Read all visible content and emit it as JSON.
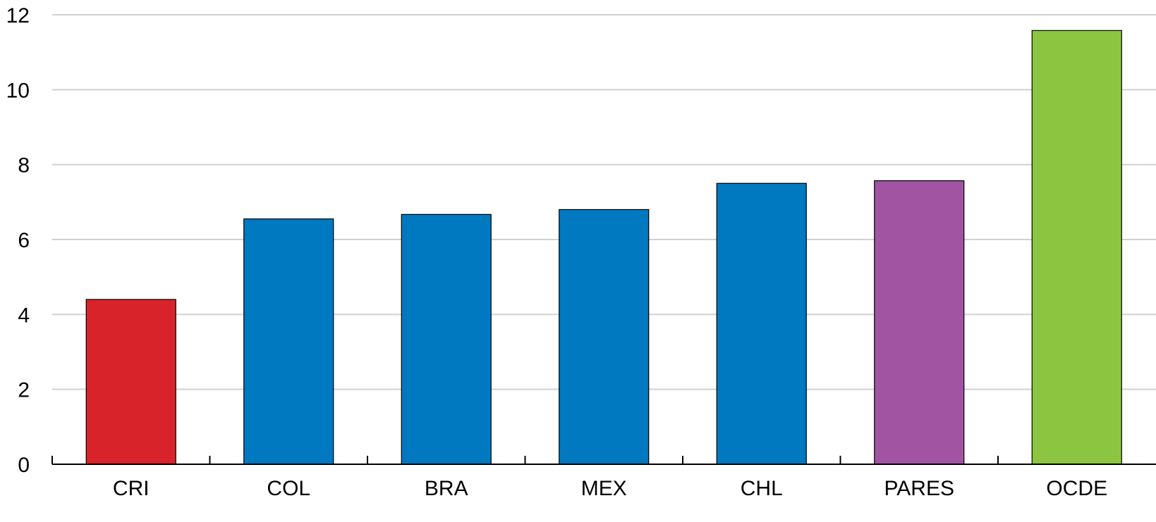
{
  "chart_data": {
    "type": "bar",
    "title": "",
    "xlabel": "",
    "ylabel": "",
    "categories": [
      "CRI",
      "COL",
      "BRA",
      "MEX",
      "CHL",
      "PARES",
      "OCDE"
    ],
    "values": [
      4.4,
      6.55,
      6.67,
      6.8,
      7.5,
      7.57,
      11.58
    ],
    "colors": [
      "#d9232a",
      "#0079c1",
      "#0079c1",
      "#0079c1",
      "#0079c1",
      "#a154a1",
      "#8cc641"
    ],
    "ylim": [
      0,
      12
    ],
    "yticks": [
      0,
      2,
      4,
      6,
      8,
      10,
      12
    ],
    "grid": true,
    "legend": "none"
  }
}
